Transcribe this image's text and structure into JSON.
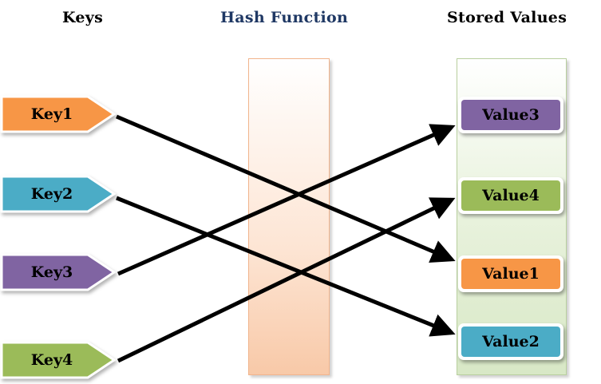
{
  "headings": {
    "keys": "Keys",
    "hash_function": "Hash Function",
    "stored_values": "Stored Values"
  },
  "keys": [
    {
      "label": "Key1",
      "color": "#f79646"
    },
    {
      "label": "Key2",
      "color": "#4bacc6"
    },
    {
      "label": "Key3",
      "color": "#8064a2"
    },
    {
      "label": "Key4",
      "color": "#9bbb59"
    }
  ],
  "values": [
    {
      "label": "Value3",
      "color": "#8064a2"
    },
    {
      "label": "Value4",
      "color": "#9bbb59"
    },
    {
      "label": "Value1",
      "color": "#f79646"
    },
    {
      "label": "Value2",
      "color": "#4bacc6"
    }
  ],
  "mappings": [
    {
      "from": "Key1",
      "to": "Value1"
    },
    {
      "from": "Key2",
      "to": "Value2"
    },
    {
      "from": "Key3",
      "to": "Value3"
    },
    {
      "from": "Key4",
      "to": "Value4"
    }
  ],
  "heading_color": "#1f3864"
}
